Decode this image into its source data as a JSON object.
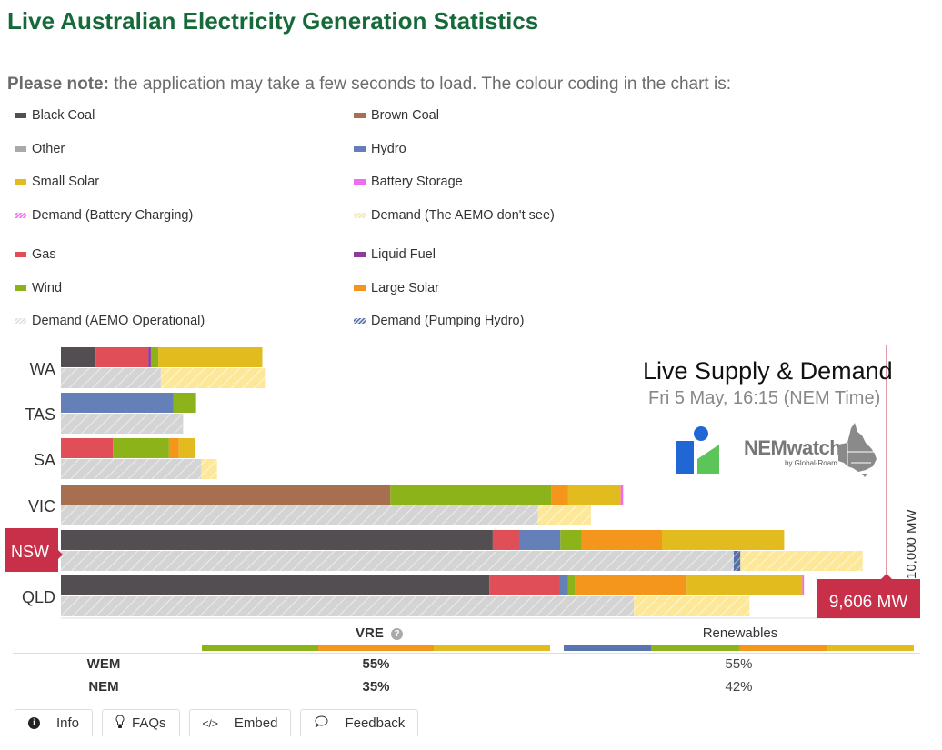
{
  "page": {
    "title": "Live Australian Electricity Generation Statistics",
    "note_bold": "Please note:",
    "note_text": " the application may take a few seconds to load. The colour coding in the chart is:"
  },
  "legend": {
    "group1": [
      {
        "label": "Black Coal",
        "color": "#524e52",
        "hatched": false
      },
      {
        "label": "Brown Coal",
        "color": "#a86e50",
        "hatched": false
      },
      {
        "label": "Other",
        "color": "#a9a9a9",
        "hatched": false
      },
      {
        "label": "Hydro",
        "color": "#6580b8",
        "hatched": false
      },
      {
        "label": "Small Solar",
        "color": "#e2bc1e",
        "hatched": false
      },
      {
        "label": "Battery Storage",
        "color": "#f06cf0",
        "hatched": false
      },
      {
        "label": "Demand (Battery Charging)",
        "color": "#f06cf0",
        "hatched": true
      },
      {
        "label": "Demand (The AEMO don't see)",
        "color": "#f3e6a8",
        "hatched": true
      }
    ],
    "group2": [
      {
        "label": "Gas",
        "color": "#e04e58",
        "hatched": false
      },
      {
        "label": "Liquid Fuel",
        "color": "#8e3c9a",
        "hatched": false
      },
      {
        "label": "Wind",
        "color": "#8db31b",
        "hatched": false
      },
      {
        "label": "Large Solar",
        "color": "#f5961c",
        "hatched": false
      },
      {
        "label": "Demand (AEMO Operational)",
        "color": "#e0e0e0",
        "hatched": true
      },
      {
        "label": "Demand (Pumping Hydro)",
        "color": "#5570a8",
        "hatched": true
      }
    ]
  },
  "live": {
    "title": "Live Supply & Demand",
    "timestamp": "Fri 5 May, 16:15 (NEM Time)",
    "logo_text": "NEMwatch",
    "logo_sub": "by Global-Roam"
  },
  "chart_data": {
    "type": "bar",
    "orientation": "horizontal-stacked",
    "title": "Live Supply & Demand",
    "subtitle": "Fri 5 May, 16:15 (NEM Time)",
    "units": "MW",
    "xlim": [
      0,
      10000
    ],
    "reference_line": {
      "value": 10000,
      "label": "10,000 MW"
    },
    "highlight": {
      "region": "NSW",
      "label": "9,606 MW",
      "value": 9606
    },
    "colors": {
      "Black Coal": "#524e52",
      "Brown Coal": "#a86e50",
      "Gas": "#e04e58",
      "Liquid Fuel": "#8e3c9a",
      "Hydro": "#6580b8",
      "Wind": "#8db31b",
      "Large Solar": "#f5961c",
      "Small Solar": "#e2bc1e",
      "Battery Storage": "#f06cf0",
      "Demand (AEMO Operational)": "#d4d4d4",
      "Demand (The AEMO don't see)": "#fde89a",
      "Demand (Pumping Hydro)": "#5570a8",
      "Demand (Battery Charging)": "#f06cf0"
    },
    "categories": [
      "WA",
      "TAS",
      "SA",
      "VIC",
      "NSW",
      "QLD"
    ],
    "supply": [
      {
        "region": "WA",
        "segments": [
          {
            "name": "Black Coal",
            "value": 420
          },
          {
            "name": "Gas",
            "value": 640
          },
          {
            "name": "Liquid Fuel",
            "value": 30
          },
          {
            "name": "Wind",
            "value": 90
          },
          {
            "name": "Small Solar",
            "value": 1260
          }
        ]
      },
      {
        "region": "TAS",
        "segments": [
          {
            "name": "Hydro",
            "value": 1360
          },
          {
            "name": "Wind",
            "value": 260
          },
          {
            "name": "Small Solar",
            "value": 20
          }
        ]
      },
      {
        "region": "SA",
        "segments": [
          {
            "name": "Gas",
            "value": 630
          },
          {
            "name": "Wind",
            "value": 680
          },
          {
            "name": "Large Solar",
            "value": 120
          },
          {
            "name": "Small Solar",
            "value": 190
          }
        ]
      },
      {
        "region": "VIC",
        "segments": [
          {
            "name": "Brown Coal",
            "value": 3990
          },
          {
            "name": "Wind",
            "value": 1950
          },
          {
            "name": "Large Solar",
            "value": 200
          },
          {
            "name": "Small Solar",
            "value": 640
          },
          {
            "name": "Battery Storage",
            "value": 30
          }
        ]
      },
      {
        "region": "NSW",
        "segments": [
          {
            "name": "Black Coal",
            "value": 5230
          },
          {
            "name": "Gas",
            "value": 320
          },
          {
            "name": "Hydro",
            "value": 500
          },
          {
            "name": "Wind",
            "value": 260
          },
          {
            "name": "Large Solar",
            "value": 970
          },
          {
            "name": "Small Solar",
            "value": 1480
          }
        ]
      },
      {
        "region": "QLD",
        "segments": [
          {
            "name": "Black Coal",
            "value": 5190
          },
          {
            "name": "Gas",
            "value": 850
          },
          {
            "name": "Hydro",
            "value": 100
          },
          {
            "name": "Wind",
            "value": 90
          },
          {
            "name": "Large Solar",
            "value": 1350
          },
          {
            "name": "Small Solar",
            "value": 1400
          },
          {
            "name": "Battery Storage",
            "value": 20
          }
        ]
      }
    ],
    "demand": [
      {
        "region": "WA",
        "segments": [
          {
            "name": "Demand (AEMO Operational)",
            "value": 1210
          },
          {
            "name": "Demand (The AEMO don't see)",
            "value": 1260
          }
        ]
      },
      {
        "region": "TAS",
        "segments": [
          {
            "name": "Demand (AEMO Operational)",
            "value": 1480
          }
        ]
      },
      {
        "region": "SA",
        "segments": [
          {
            "name": "Demand (AEMO Operational)",
            "value": 1700
          },
          {
            "name": "Demand (The AEMO don't see)",
            "value": 190
          }
        ]
      },
      {
        "region": "VIC",
        "segments": [
          {
            "name": "Demand (AEMO Operational)",
            "value": 5780
          },
          {
            "name": "Demand (The AEMO don't see)",
            "value": 640
          }
        ]
      },
      {
        "region": "NSW",
        "segments": [
          {
            "name": "Demand (AEMO Operational)",
            "value": 8150
          },
          {
            "name": "Demand (Pumping Hydro)",
            "value": 80
          },
          {
            "name": "Demand (The AEMO don't see)",
            "value": 1480
          }
        ]
      },
      {
        "region": "QLD",
        "segments": [
          {
            "name": "Demand (AEMO Operational)",
            "value": 6940
          },
          {
            "name": "Demand (The AEMO don't see)",
            "value": 1400
          }
        ]
      }
    ]
  },
  "summary": {
    "headers": {
      "vre": "VRE",
      "renewables": "Renewables"
    },
    "help_icon": "question-circle-icon",
    "vre_colors": [
      "#8db31b",
      "#f5961c",
      "#e2bc1e"
    ],
    "renewables_colors": [
      "#5a75ad",
      "#8db31b",
      "#f5961c",
      "#e2bc1e"
    ],
    "rows": [
      {
        "market": "WEM",
        "vre": "55%",
        "renewables": "55%"
      },
      {
        "market": "NEM",
        "vre": "35%",
        "renewables": "42%"
      }
    ]
  },
  "tabs": [
    {
      "label": "Info",
      "icon": "info-circle-icon",
      "glyph": "❶"
    },
    {
      "label": "FAQs",
      "icon": "lightbulb-icon",
      "glyph": "💡"
    },
    {
      "label": "Embed",
      "icon": "code-icon",
      "glyph": "</>"
    },
    {
      "label": "Feedback",
      "icon": "speech-bubble-icon",
      "glyph": "💬"
    }
  ]
}
